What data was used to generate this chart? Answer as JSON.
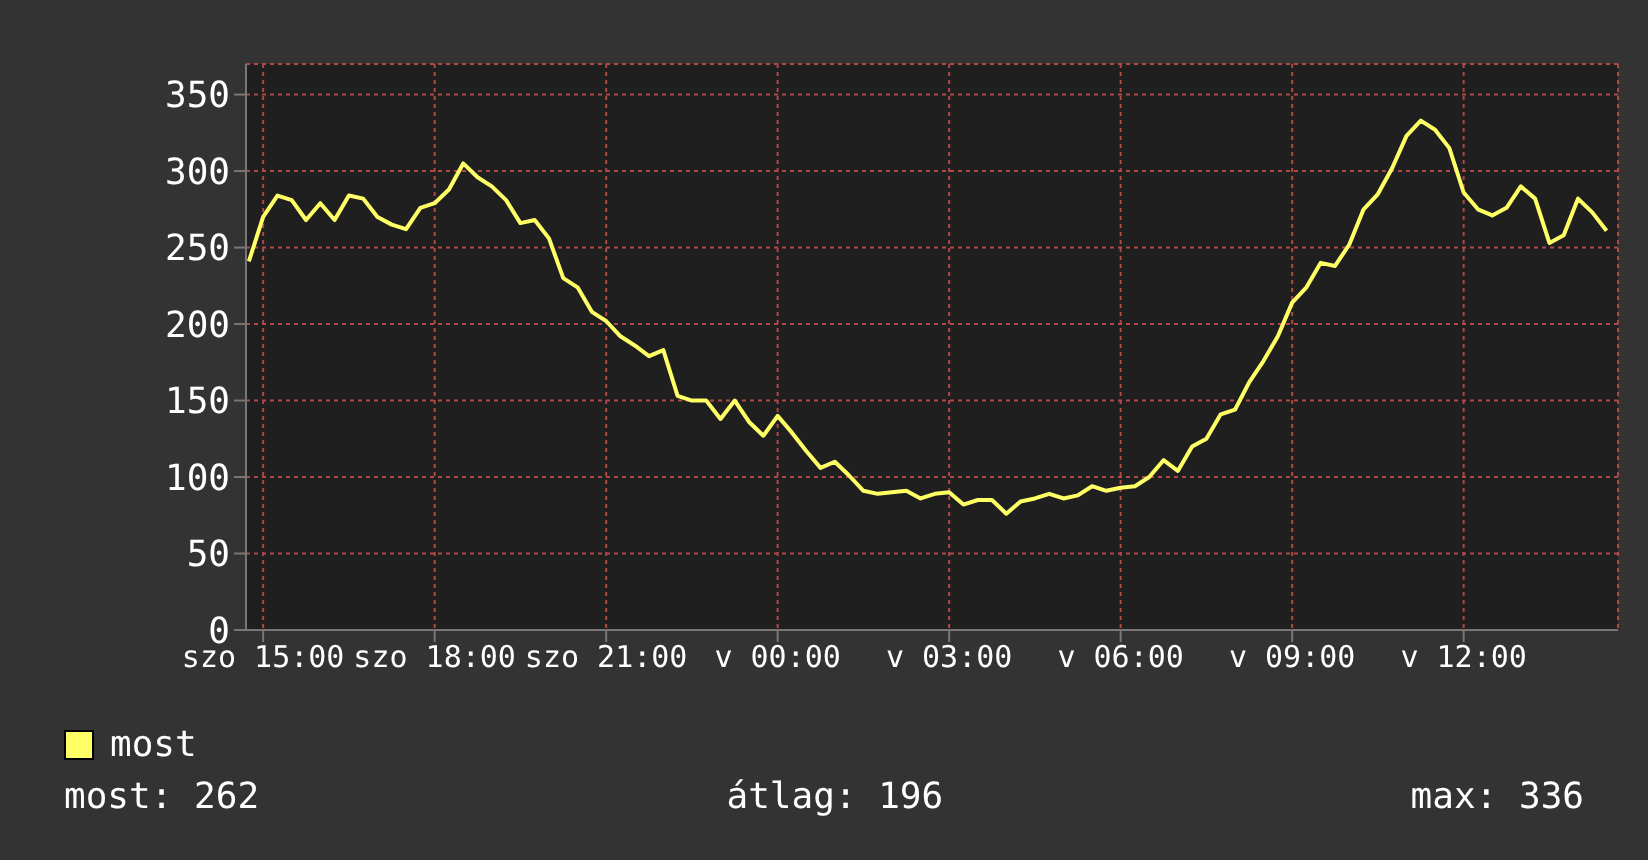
{
  "chart_data": {
    "type": "line",
    "categories": [
      null,
      "szo 15:00",
      null,
      null,
      null,
      null,
      null,
      null,
      null,
      null,
      null,
      null,
      null,
      "szo 18:00",
      null,
      null,
      null,
      null,
      null,
      null,
      null,
      null,
      null,
      null,
      null,
      "szo 21:00",
      null,
      null,
      null,
      null,
      null,
      null,
      null,
      null,
      null,
      null,
      null,
      "v 00:00",
      null,
      null,
      null,
      null,
      null,
      null,
      null,
      null,
      null,
      null,
      null,
      "v 03:00",
      null,
      null,
      null,
      null,
      null,
      null,
      null,
      null,
      null,
      null,
      null,
      "v 06:00",
      null,
      null,
      null,
      null,
      null,
      null,
      null,
      null,
      null,
      null,
      null,
      "v 09:00",
      null,
      null,
      null,
      null,
      null,
      null,
      null,
      null,
      null,
      null,
      null,
      "v 12:00",
      null,
      null,
      null,
      null,
      null,
      null,
      null,
      null,
      null,
      null
    ],
    "series": [
      {
        "name": "most",
        "color": "#ffff66",
        "values": [
          241,
          270,
          284,
          281,
          268,
          279,
          268,
          284,
          282,
          270,
          265,
          262,
          276,
          279,
          288,
          305,
          296,
          290,
          281,
          266,
          268,
          256,
          230,
          224,
          208,
          202,
          192,
          186,
          179,
          183,
          153,
          150,
          150,
          138,
          150,
          136,
          127,
          140,
          129,
          117,
          106,
          110,
          101,
          91,
          89,
          90,
          91,
          86,
          89,
          90,
          82,
          85,
          85,
          76,
          84,
          86,
          89,
          86,
          88,
          94,
          91,
          93,
          94,
          100,
          111,
          104,
          120,
          125,
          141,
          144,
          162,
          176,
          192,
          214,
          224,
          240,
          238,
          252,
          275,
          285,
          302,
          323,
          333,
          327,
          315,
          286,
          275,
          271,
          276,
          290,
          282,
          253,
          258,
          282,
          273,
          261
        ]
      }
    ],
    "ylim": [
      0,
      370
    ],
    "yticks": [
      0,
      50,
      100,
      150,
      200,
      250,
      300,
      350
    ],
    "grid": true,
    "legend": "bottom",
    "marker": "none",
    "line_style": "solid",
    "annotations": [
      "most: 262",
      "átlag: 196",
      "max: 336"
    ]
  }
}
